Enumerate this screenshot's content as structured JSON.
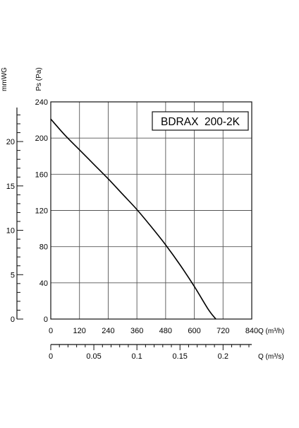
{
  "chart_data": {
    "type": "line",
    "title": "BDRAX  200-2K",
    "ylabel": "Ps (Pa)",
    "ylabel_secondary": "mmWG",
    "xlabel": "Q (m³/h)",
    "xlabel_secondary": "Q (m³/s)",
    "xlim": [
      0,
      840
    ],
    "ylim": [
      0,
      240
    ],
    "grid": true,
    "x_ticks": [
      "0",
      "120",
      "240",
      "360",
      "480",
      "600",
      "720",
      "840"
    ],
    "y_ticks": [
      "0",
      "40",
      "80",
      "120",
      "160",
      "200",
      "240"
    ],
    "secondary_y": {
      "lim": [
        0,
        24.47
      ],
      "ticks": [
        "0",
        "5",
        "10",
        "15",
        "20"
      ]
    },
    "secondary_x": {
      "lim": [
        0,
        0.2333
      ],
      "ticks": [
        "0",
        "0.05",
        "0.1",
        "0.15",
        "0.2"
      ]
    },
    "series": [
      {
        "x": [
          0,
          60,
          120,
          180,
          240,
          300,
          360,
          420,
          480,
          540,
          600,
          660,
          690
        ],
        "y": [
          221,
          203,
          187,
          171,
          155,
          138,
          121,
          102,
          82,
          60,
          36,
          10,
          0
        ]
      }
    ]
  }
}
